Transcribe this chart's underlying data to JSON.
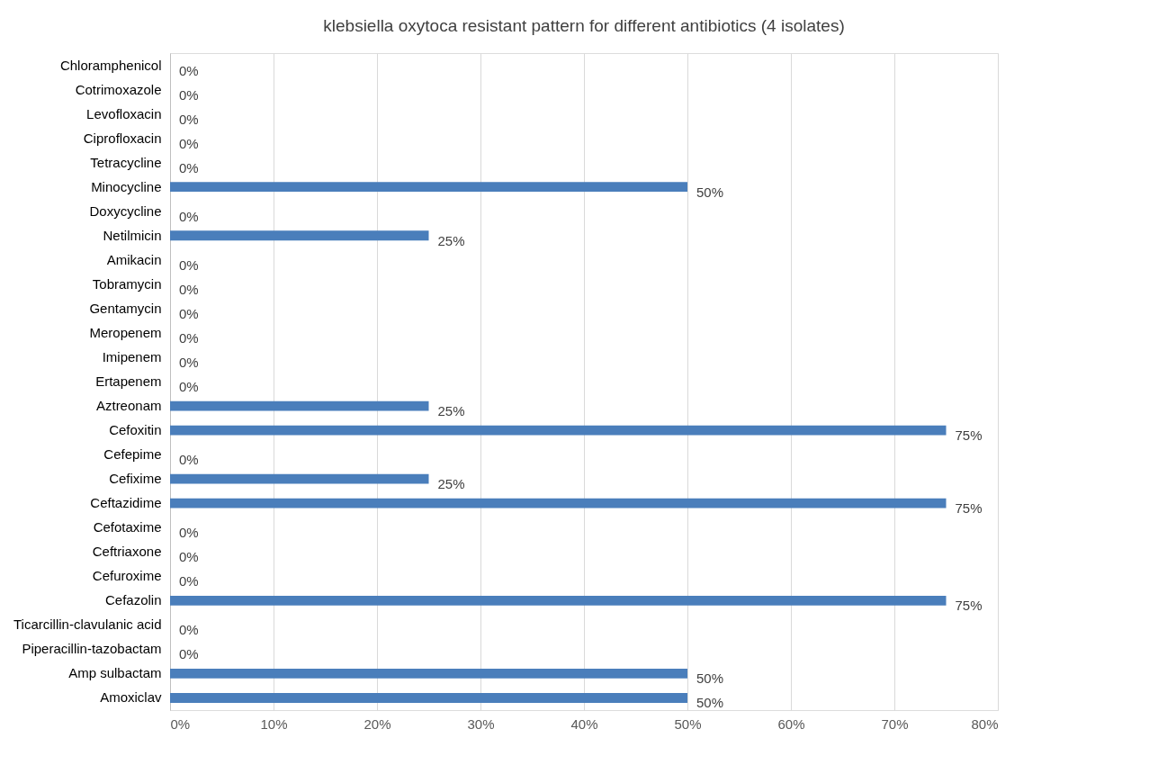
{
  "chart_data": {
    "type": "bar",
    "orientation": "horizontal",
    "title": "klebsiella oxytoca resistant pattern for different antibiotics (4 isolates)",
    "categories": [
      "Chloramphenicol",
      "Cotrimoxazole",
      "Levofloxacin",
      "Ciprofloxacin",
      "Tetracycline",
      "Minocycline",
      "Doxycycline",
      "Netilmicin",
      "Amikacin",
      "Tobramycin",
      "Gentamycin",
      "Meropenem",
      "Imipenem",
      "Ertapenem",
      "Aztreonam",
      "Cefoxitin",
      "Cefepime",
      "Cefixime",
      "Ceftazidime",
      "Cefotaxime",
      "Ceftriaxone",
      "Cefuroxime",
      "Cefazolin",
      "Ticarcillin-clavulanic  acid",
      "Piperacillin-tazobactam",
      "Amp sulbactam",
      "Amoxiclav"
    ],
    "values": [
      0,
      0,
      0,
      0,
      0,
      50,
      0,
      25,
      0,
      0,
      0,
      0,
      0,
      0,
      25,
      75,
      0,
      25,
      75,
      0,
      0,
      0,
      75,
      0,
      0,
      50,
      50
    ],
    "value_labels": [
      "0%",
      "0%",
      "0%",
      "0%",
      "0%",
      "50%",
      "0%",
      "25%",
      "0%",
      "0%",
      "0%",
      "0%",
      "0%",
      "0%",
      "25%",
      "75%",
      "0%",
      "25%",
      "75%",
      "0%",
      "0%",
      "0%",
      "75%",
      "0%",
      "0%",
      "50%",
      "50%"
    ],
    "color": "#4a7ebb",
    "xlim": [
      0,
      80
    ],
    "xticks": [
      {
        "value": 0,
        "label": "0%"
      },
      {
        "value": 10,
        "label": "10%"
      },
      {
        "value": 20,
        "label": "20%"
      },
      {
        "value": 30,
        "label": "30%"
      },
      {
        "value": 40,
        "label": "40%"
      },
      {
        "value": 50,
        "label": "50%"
      },
      {
        "value": 60,
        "label": "60%"
      },
      {
        "value": 70,
        "label": "70%"
      },
      {
        "value": 80,
        "label": "80%"
      }
    ],
    "grid": "x"
  }
}
